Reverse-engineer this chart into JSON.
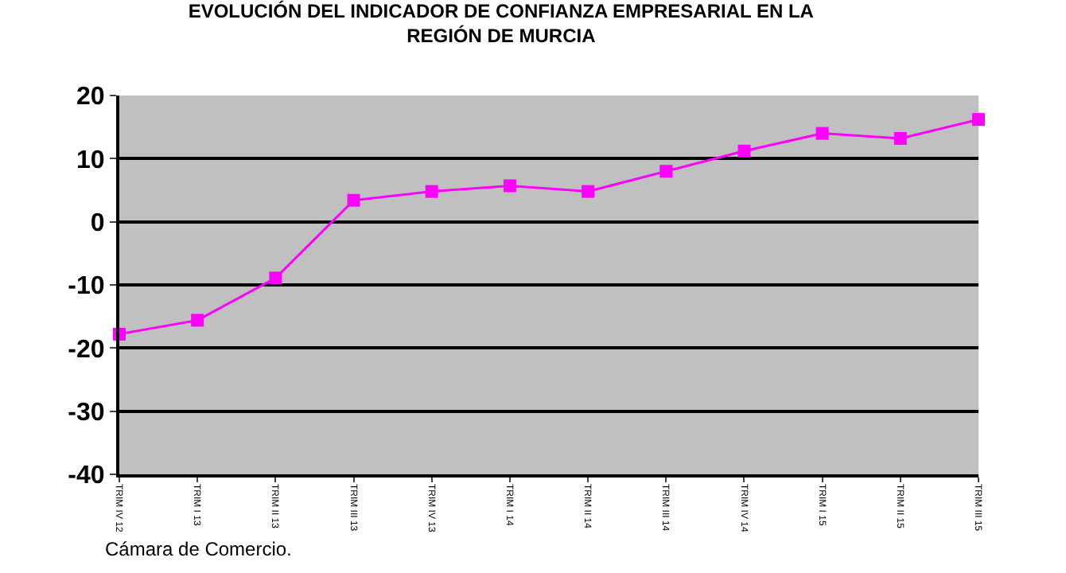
{
  "chart_data": {
    "type": "line",
    "title": "EVOLUCIÓN DEL INDICADOR DE CONFIANZA EMPRESARIAL EN LA REGIÓN DE MURCIA",
    "categories": [
      "TRIM IV 12",
      "TRIM I 13",
      "TRIM II 13",
      "TRIM III 13",
      "TRIM IV 13",
      "TRIM I 14",
      "TRIM II 14",
      "TRIM III 14",
      "TRIM IV 14",
      "TRIM I 15",
      "TRIM II 15",
      "TRIM III 15"
    ],
    "series": [
      {
        "color": "#ff00ff",
        "values": [
          -17.8,
          -15.6,
          -8.9,
          3.4,
          4.8,
          5.7,
          4.8,
          8.0,
          11.2,
          14.0,
          13.2,
          16.2
        ]
      }
    ],
    "ylim": [
      -40,
      20
    ],
    "yticks": [
      -40,
      -30,
      -20,
      -10,
      0,
      10,
      20
    ],
    "grid": "y",
    "marker": "square",
    "line_style": "solid",
    "annotations": [
      "Cámara de Comercio."
    ]
  }
}
